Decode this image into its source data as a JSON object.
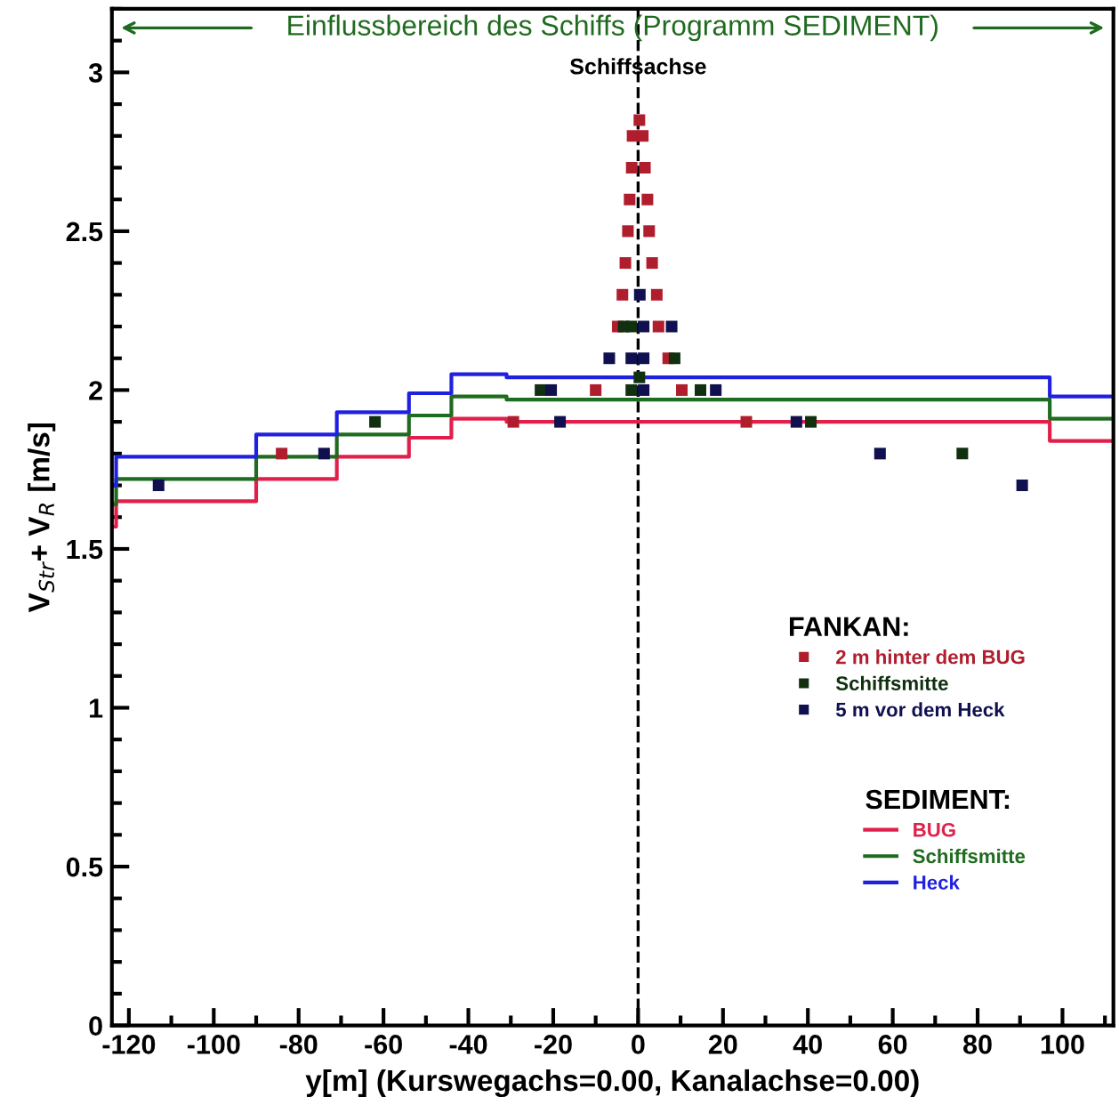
{
  "chart_data": {
    "type": "scatter",
    "title": "Einflussbereich des Schiffs (Programm SEDIMENT)",
    "xlabel": "y[m] (Kurswegachs=0.00, Kanalachse=0.00)",
    "ylabel": "V$_{Str}$+ V$_{R}$ [m/s]",
    "xlim": [
      -124,
      112
    ],
    "ylim": [
      0,
      3.2
    ],
    "xticks": [
      -120,
      -100,
      -80,
      -60,
      -40,
      -20,
      0,
      20,
      40,
      60,
      80,
      100
    ],
    "yticks": [
      0,
      0.5,
      1,
      1.5,
      2,
      2.5,
      3
    ],
    "grid": false,
    "legend": "right",
    "marker": "square",
    "annotations": [
      "FANKAN:",
      "SEDIMENT:"
    ],
    "ref_lines": [
      {
        "axis": "x",
        "value": 0,
        "label": "Schiffsachse",
        "color": "#000000",
        "line_style": "dashed"
      }
    ],
    "series": [
      {
        "name": "2 m hinter dem BUG",
        "color": "#b01e2e",
        "x": [
          -84,
          -29.4,
          -10,
          10.3,
          25.5,
          7.1,
          -4.8,
          4.8,
          -3.7,
          4.4,
          -3,
          3.3,
          -2.4,
          2.6,
          -2,
          2.2,
          -1.5,
          1.6,
          -1.3,
          1.1,
          0.3
        ],
        "values": [
          1.8,
          1.9,
          2.0,
          2.0,
          1.9,
          2.1,
          2.2,
          2.2,
          2.3,
          2.3,
          2.4,
          2.4,
          2.5,
          2.5,
          2.6,
          2.6,
          2.7,
          2.7,
          2.8,
          2.8,
          2.85
        ]
      },
      {
        "name": "Schiffsmitte",
        "color": "#103010",
        "x": [
          -62,
          -23,
          -1.6,
          14.7,
          40.7,
          76.4,
          -3.4,
          -1.6,
          8.6,
          0.3
        ],
        "values": [
          1.9,
          2.0,
          2.0,
          2.0,
          1.9,
          1.8,
          2.2,
          2.2,
          2.1,
          2.04
        ]
      },
      {
        "name": "5 m vor dem Heck",
        "color": "#101050",
        "x": [
          -113,
          -74,
          -20.5,
          -18.4,
          1.3,
          18.3,
          37.3,
          57,
          90.5,
          -6.8,
          -1.6,
          1.3,
          1.3,
          7.9,
          0.4
        ],
        "values": [
          1.7,
          1.8,
          2.0,
          1.9,
          2.0,
          2.0,
          1.9,
          1.8,
          1.7,
          2.1,
          2.1,
          2.1,
          2.2,
          2.2,
          2.3
        ]
      },
      {
        "name": "BUG",
        "type": "step",
        "marker": "none",
        "color": "#e0204a",
        "x": [
          -124,
          -123,
          -90,
          -71,
          -54,
          -44,
          -31,
          97,
          112
        ],
        "values": [
          1.57,
          1.65,
          1.72,
          1.79,
          1.85,
          1.91,
          1.9,
          1.84,
          1.84
        ]
      },
      {
        "name": "Schiffsmitte",
        "type": "step",
        "marker": "none",
        "color": "#1f6b1f",
        "x": [
          -124,
          -123,
          -90,
          -71,
          -54,
          -44,
          -31,
          97,
          112
        ],
        "values": [
          1.64,
          1.72,
          1.79,
          1.86,
          1.92,
          1.98,
          1.97,
          1.91,
          1.91
        ]
      },
      {
        "name": "Heck",
        "type": "step",
        "marker": "none",
        "color": "#2020e0",
        "x": [
          -124,
          -123,
          -90,
          -71,
          -54,
          -44,
          -31,
          97,
          112
        ],
        "values": [
          1.7,
          1.79,
          1.86,
          1.93,
          1.99,
          2.05,
          2.04,
          1.98,
          1.98
        ]
      }
    ]
  }
}
